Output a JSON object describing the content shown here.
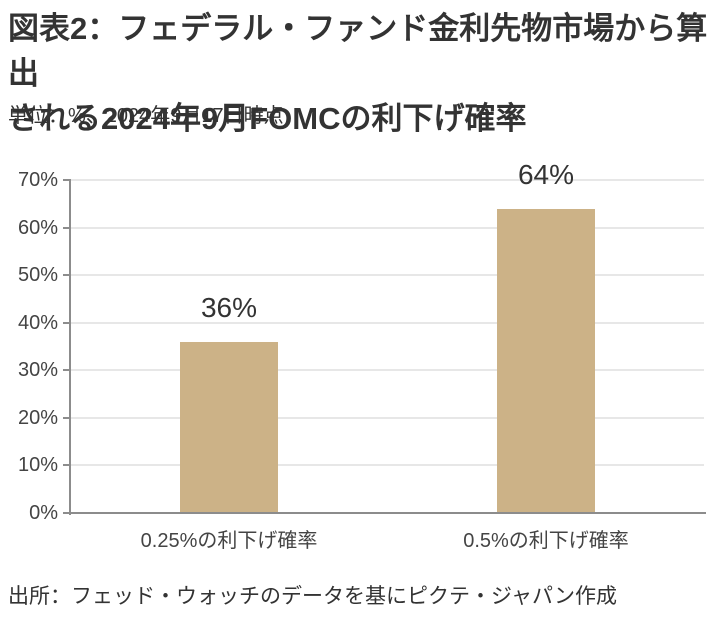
{
  "header": {
    "title_lines": [
      "図表2：フェデラル・ファンド金利先物市場から算出",
      "される2024年9月FOMCの利下げ確率"
    ],
    "subtitle": "単位：%、2024年9月17日時点"
  },
  "chart_data": {
    "type": "bar",
    "title": "図表2：フェデラル・ファンド金利先物市場から算出される2024年9月FOMCの利下げ確率",
    "subtitle": "単位：%、2024年9月17日時点",
    "categories": [
      "0.25%の利下げ確率",
      "0.5%の利下げ確率"
    ],
    "values": [
      36,
      64
    ],
    "data_labels": [
      "36%",
      "64%"
    ],
    "y_tick_values": [
      0,
      10,
      20,
      30,
      40,
      50,
      60,
      70
    ],
    "y_tick_labels": [
      "0%",
      "10%",
      "20%",
      "30%",
      "40%",
      "50%",
      "60%",
      "70%"
    ],
    "ylim": [
      0,
      70
    ],
    "grid": "horizontal",
    "legend": "none",
    "colors": {
      "bar": "#ccb287",
      "gridline": "#e7e7e7",
      "axis": "#8c8c8c",
      "text": "#333333",
      "tick_text": "#444444"
    }
  },
  "footer": {
    "source": "出所：フェッド・ウォッチのデータを基にピクテ・ジャパン作成"
  }
}
